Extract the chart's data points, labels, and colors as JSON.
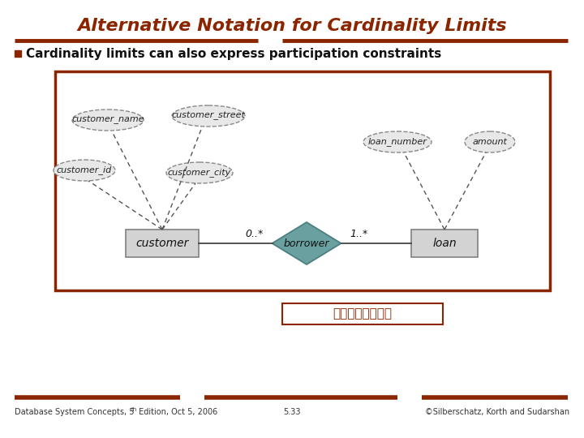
{
  "title": "Alternative Notation for Cardinality Limits",
  "title_color": "#8B2500",
  "title_fontsize": 16,
  "subtitle": "Cardinality limits can also express participation constraints",
  "subtitle_fontsize": 11,
  "bg_color": "#FFFFFF",
  "accent_color": "#8B2500",
  "diagram_border_color": "#8B2500",
  "note_text": "與上頁之圖同義。",
  "entity_fill": "#D3D3D3",
  "entity_border": "#888888",
  "attr_fill": "#E8E8E8",
  "attr_border": "#888888",
  "relation_fill": "#6AA0A0",
  "relation_border": "#4A8080",
  "line_color": "#444444",
  "footer_left": "Database System Concepts, 5",
  "footer_left_super": "th",
  "footer_left2": " Edition, Oct 5, 2006",
  "footer_center": "5.33",
  "footer_right": "©Silberschatz, Korth and Sudarshan"
}
